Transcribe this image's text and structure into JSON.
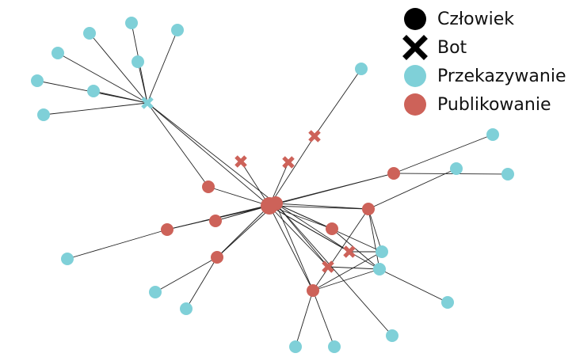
{
  "legend": [
    {
      "key": "human",
      "label": "Człowiek",
      "shape": "circle",
      "color": "#000000"
    },
    {
      "key": "bot",
      "label": "Bot",
      "shape": "x",
      "color": "#000000"
    },
    {
      "key": "forward",
      "label": "Przekazywanie",
      "shape": "circle",
      "color": "#7fd0d8"
    },
    {
      "key": "publish",
      "label": "Publikowanie",
      "shape": "circle",
      "color": "#cd6259"
    }
  ],
  "colors": {
    "forward": "#7fd0d8",
    "publish": "#cd6259",
    "edge": "#222222"
  }
}
